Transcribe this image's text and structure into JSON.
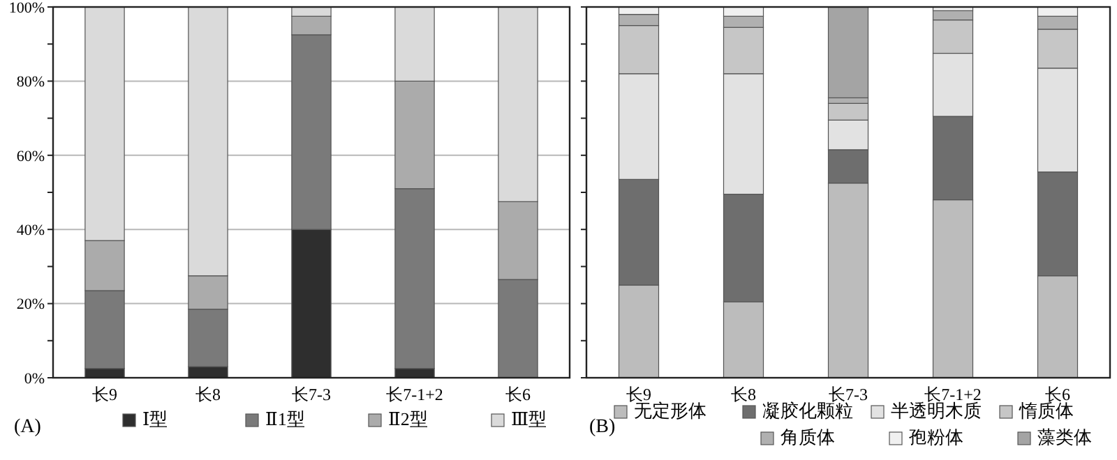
{
  "chart_data": [
    {
      "type": "bar",
      "stacked": true,
      "categories": [
        "长9",
        "长8",
        "长7-3",
        "长7-1+2",
        "长6"
      ],
      "ylim": [
        0,
        100
      ],
      "yticks": [
        {
          "value": 0,
          "label": "0%"
        },
        {
          "value": 10,
          "label": null
        },
        {
          "value": 20,
          "label": "20%"
        },
        {
          "value": 30,
          "label": null
        },
        {
          "value": 40,
          "label": "40%"
        },
        {
          "value": 50,
          "label": null
        },
        {
          "value": 60,
          "label": "60%"
        },
        {
          "value": 70,
          "label": null
        },
        {
          "value": 80,
          "label": "80%"
        },
        {
          "value": 90,
          "label": null
        },
        {
          "value": 100,
          "label": "100%"
        }
      ],
      "grid": "y",
      "legend": "bottom",
      "annotations": [
        "(A)"
      ],
      "series": [
        {
          "name": "Ⅰ型",
          "color": "#2e2e2e",
          "values": [
            2.5,
            3,
            40,
            2.5,
            0
          ]
        },
        {
          "name": "Ⅱ1型",
          "color": "#7a7a7a",
          "values": [
            21,
            15.5,
            52.5,
            48.5,
            26.5
          ]
        },
        {
          "name": "Ⅱ2型",
          "color": "#ababab",
          "values": [
            13.5,
            9,
            5,
            29,
            21
          ]
        },
        {
          "name": "Ⅲ型",
          "color": "#dadada",
          "values": [
            63,
            72.5,
            2.5,
            20,
            52.5
          ]
        }
      ]
    },
    {
      "type": "bar",
      "stacked": true,
      "categories": [
        "长9",
        "长8",
        "长7-3",
        "长7-1+2",
        "长6"
      ],
      "ylim": [
        0,
        100
      ],
      "yticks": [
        {
          "value": 0,
          "label": null
        },
        {
          "value": 10,
          "label": null
        },
        {
          "value": 20,
          "label": null
        },
        {
          "value": 30,
          "label": null
        },
        {
          "value": 40,
          "label": null
        },
        {
          "value": 50,
          "label": null
        },
        {
          "value": 60,
          "label": null
        },
        {
          "value": 70,
          "label": null
        },
        {
          "value": 80,
          "label": null
        },
        {
          "value": 90,
          "label": null
        },
        {
          "value": 100,
          "label": null
        }
      ],
      "tick_labels": "x",
      "grid": "y",
      "legend": "bottom",
      "annotations": [
        "(B)"
      ],
      "series": [
        {
          "name": "无定形体",
          "color": "#bcbcbc",
          "values": [
            25,
            20.5,
            52.5,
            48,
            27.5
          ]
        },
        {
          "name": "凝胶化颗粒",
          "color": "#6e6e6e",
          "values": [
            28.5,
            29,
            9,
            22.5,
            28
          ]
        },
        {
          "name": "半透明木质",
          "color": "#e2e2e2",
          "values": [
            28.5,
            32.5,
            8,
            17,
            28
          ]
        },
        {
          "name": "惰质体",
          "color": "#c6c6c6",
          "values": [
            13,
            12.5,
            4.5,
            9,
            10.5
          ]
        },
        {
          "name": "角质体",
          "color": "#b0b0b0",
          "values": [
            3,
            3,
            1.5,
            2.5,
            3.5
          ]
        },
        {
          "name": "孢粉体",
          "color": "#f0f0f0",
          "values": [
            2,
            2.5,
            0,
            1,
            2.5
          ]
        },
        {
          "name": "藻类体",
          "color": "#a4a4a4",
          "values": [
            0,
            0,
            24.5,
            0,
            0
          ]
        }
      ]
    }
  ]
}
